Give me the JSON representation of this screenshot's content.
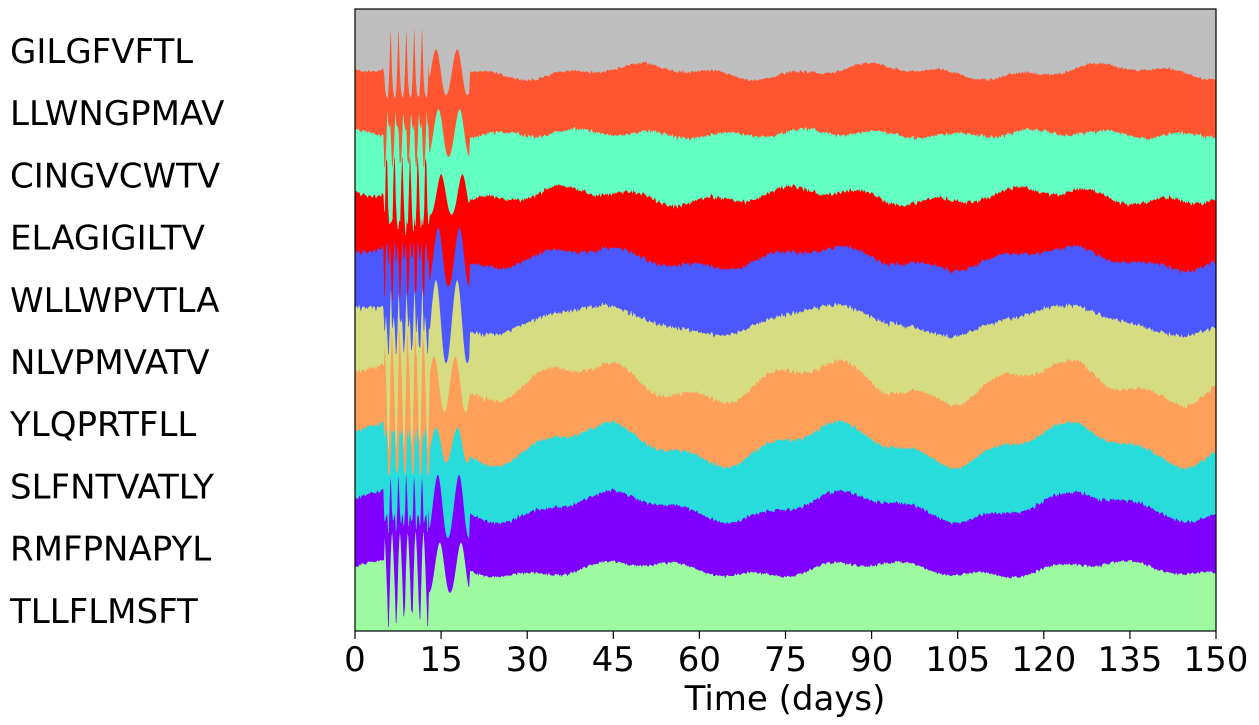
{
  "chart_data": {
    "type": "area",
    "stacked": true,
    "normalized": true,
    "title": "",
    "xlabel": "Time (days)",
    "ylabel": "",
    "xlim": [
      0,
      150
    ],
    "ylim": [
      0,
      1
    ],
    "xticks": [
      0,
      15,
      30,
      45,
      60,
      75,
      90,
      105,
      120,
      135,
      150
    ],
    "grid": false,
    "legend": "left",
    "stack_order_bottom_to_top": [
      "TLLFLMSFT",
      "RMFPNAPYL",
      "SLFNTVATLY",
      "YLQPRTFLL",
      "NLVPMVATV",
      "WLLWPVTLA",
      "ELAGIGILTV",
      "CINGVCWTV",
      "LLWNGPMAV",
      "GILGFVFTL"
    ],
    "series": [
      {
        "name": "TLLFLMSFT",
        "color": "#9efaa0",
        "values": [
          0.1,
          0.1,
          0.1,
          0.1,
          0.1,
          0.1,
          0.1,
          0.1,
          0.1,
          0.1,
          0.1
        ]
      },
      {
        "name": "RMFPNAPYL",
        "color": "#7f00ff",
        "values": [
          0.1,
          0.1,
          0.1,
          0.1,
          0.1,
          0.1,
          0.1,
          0.1,
          0.1,
          0.1,
          0.1
        ]
      },
      {
        "name": "SLFNTVATLY",
        "color": "#29dcdc",
        "values": [
          0.1,
          0.1,
          0.1,
          0.1,
          0.1,
          0.1,
          0.1,
          0.1,
          0.1,
          0.1,
          0.1
        ]
      },
      {
        "name": "YLQPRTFLL",
        "color": "#ffa05a",
        "values": [
          0.1,
          0.1,
          0.1,
          0.1,
          0.1,
          0.1,
          0.1,
          0.1,
          0.1,
          0.1,
          0.1
        ]
      },
      {
        "name": "NLVPMVATV",
        "color": "#d5dc82",
        "values": [
          0.1,
          0.1,
          0.1,
          0.1,
          0.1,
          0.1,
          0.1,
          0.1,
          0.1,
          0.1,
          0.1
        ]
      },
      {
        "name": "WLLWPVTLA",
        "color": "#4b57ff",
        "values": [
          0.1,
          0.1,
          0.1,
          0.1,
          0.1,
          0.1,
          0.1,
          0.1,
          0.1,
          0.1,
          0.1
        ]
      },
      {
        "name": "ELAGIGILTV",
        "color": "#ff0000",
        "values": [
          0.1,
          0.1,
          0.1,
          0.1,
          0.1,
          0.1,
          0.1,
          0.1,
          0.1,
          0.1,
          0.1
        ]
      },
      {
        "name": "CINGVCWTV",
        "color": "#64ffc3",
        "values": [
          0.1,
          0.1,
          0.1,
          0.1,
          0.1,
          0.1,
          0.1,
          0.1,
          0.1,
          0.1,
          0.1
        ]
      },
      {
        "name": "LLWNGPMAV",
        "color": "#ff5530",
        "values": [
          0.1,
          0.1,
          0.1,
          0.1,
          0.1,
          0.1,
          0.1,
          0.1,
          0.1,
          0.1,
          0.1
        ]
      },
      {
        "name": "GILGFVFTL",
        "color": "#bebebe",
        "values": [
          0.1,
          0.1,
          0.1,
          0.1,
          0.1,
          0.1,
          0.1,
          0.1,
          0.1,
          0.1,
          0.1
        ]
      }
    ]
  }
}
